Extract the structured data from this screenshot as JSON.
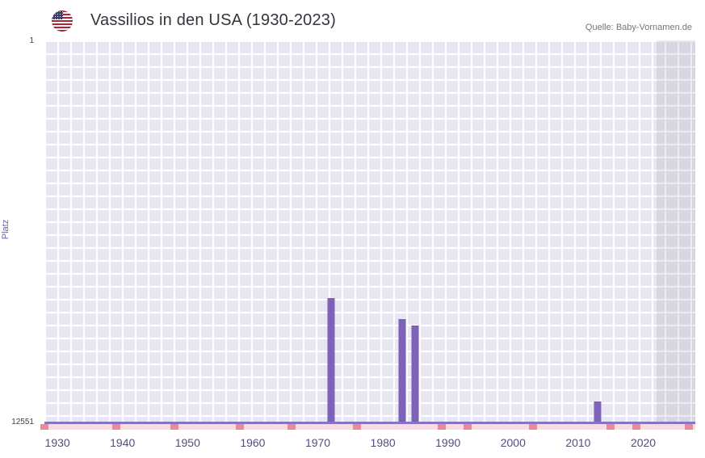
{
  "header": {
    "title": "Vassilios in den USA (1930-2023)",
    "source": "Quelle: Baby-Vornamen.de"
  },
  "axes": {
    "y_label": "Platz",
    "y_top_tick": "1",
    "y_bottom_tick": "12551"
  },
  "chart_data": {
    "type": "bar",
    "title": "Vassilios in den USA (1930-2023)",
    "xlabel": "",
    "ylabel": "Platz",
    "ylim": [
      1,
      12551
    ],
    "y_inverted": true,
    "x_domain": [
      1928,
      2028
    ],
    "x_ticks": [
      1930,
      1940,
      1950,
      1960,
      1970,
      1980,
      1990,
      2000,
      2010,
      2020
    ],
    "grid": true,
    "series": [
      {
        "name": "Platz",
        "points": [
          {
            "year": 1972,
            "rank": 8480
          },
          {
            "year": 1983,
            "rank": 9170
          },
          {
            "year": 1985,
            "rank": 9380
          },
          {
            "year": 2013,
            "rank": 11890
          }
        ]
      }
    ],
    "bar_color": "#7d62b8",
    "plot_bg": "#e9e6f3",
    "grid_color": "#ffffff",
    "baseline_color": "#8476c2",
    "strip_color": "#fbdbe2",
    "marker_color": "#ec8899",
    "marker_years": [
      1928,
      1939,
      1948,
      1958,
      1966,
      1976,
      1989,
      1993,
      2003,
      2015,
      2019,
      2027
    ],
    "recent_band": {
      "from": 2022,
      "to": 2028,
      "color": "rgba(130,130,150,0.15)"
    }
  }
}
